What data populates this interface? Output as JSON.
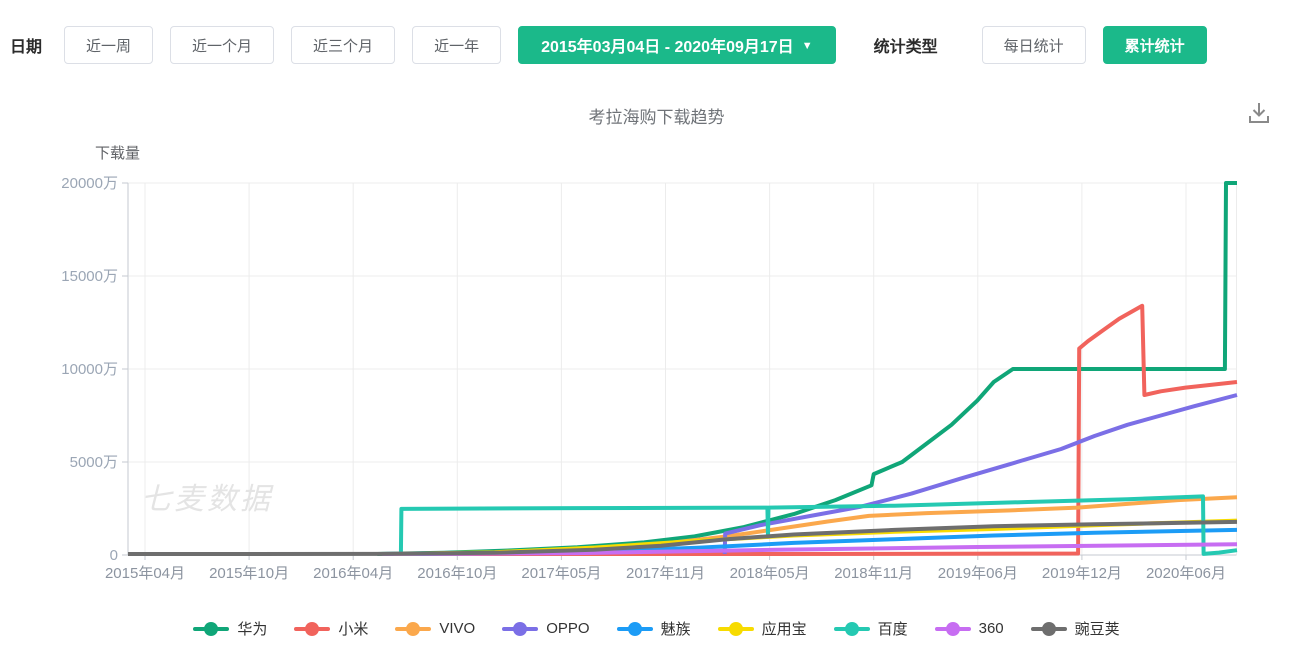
{
  "accent_color": "#1BB98A",
  "toolbar": {
    "date_label": "日期",
    "quick_ranges": [
      "近一周",
      "近一个月",
      "近三个月",
      "近一年"
    ],
    "date_range": {
      "value": "2015年03月04日 - 2020年09月17日",
      "caret": "▼"
    },
    "stat_type": {
      "label": "统计类型",
      "options": [
        {
          "label": "每日统计",
          "active": false
        },
        {
          "label": "累计统计",
          "active": true
        }
      ]
    }
  },
  "watermark": "七麦数据",
  "icons": {
    "download": "tray-with-down-arrow",
    "caret": "down-triangle"
  },
  "chart_data": {
    "type": "line",
    "title": "考拉海购下载趋势",
    "ylabel": "下载量",
    "unit": "万",
    "grid": true,
    "legend_position": "bottom",
    "x_range": [
      "2015-03-04",
      "2020-09-17"
    ],
    "y_max": 20000,
    "y_ticks": [
      {
        "v": 0,
        "label": "0"
      },
      {
        "v": 5000,
        "label": "5000万"
      },
      {
        "v": 10000,
        "label": "10000万"
      },
      {
        "v": 15000,
        "label": "15000万"
      },
      {
        "v": 20000,
        "label": "20000万"
      }
    ],
    "x_tick_labels": [
      "2015年04月",
      "2015年10月",
      "2016年04月",
      "2016年10月",
      "2017年05月",
      "2017年11月",
      "2018年05月",
      "2018年11月",
      "2019年06月",
      "2019年12月",
      "2020年06月"
    ],
    "series": [
      {
        "key": "huawei",
        "name": "华为",
        "color": "#10A678",
        "points": [
          [
            "2016-06-01",
            20
          ],
          [
            "2016-10-01",
            120
          ],
          [
            "2017-02-01",
            250
          ],
          [
            "2017-06-01",
            420
          ],
          [
            "2017-10-01",
            680
          ],
          [
            "2018-01-01",
            1000
          ],
          [
            "2018-04-01",
            1500
          ],
          [
            "2018-07-01",
            2200
          ],
          [
            "2018-09-15",
            2950
          ],
          [
            "2018-11-20",
            3750
          ],
          [
            "2018-11-24",
            4350
          ],
          [
            "2019-01-15",
            5000
          ],
          [
            "2019-03-01",
            6000
          ],
          [
            "2019-04-15",
            7000
          ],
          [
            "2019-06-01",
            8300
          ],
          [
            "2019-07-01",
            9300
          ],
          [
            "2019-08-05",
            10000
          ],
          [
            "2020-08-26",
            10000
          ],
          [
            "2020-08-28",
            20000
          ],
          [
            "2020-09-17",
            20000
          ]
        ]
      },
      {
        "key": "xiaomi",
        "name": "小米",
        "color": "#F1635C",
        "points": [
          [
            "2016-06-10",
            15
          ],
          [
            "2017-06-01",
            35
          ],
          [
            "2018-06-01",
            55
          ],
          [
            "2019-12-02",
            80
          ],
          [
            "2019-12-04",
            11100
          ],
          [
            "2019-12-20",
            11500
          ],
          [
            "2020-01-15",
            12050
          ],
          [
            "2020-02-15",
            12700
          ],
          [
            "2020-03-28",
            13400
          ],
          [
            "2020-04-01",
            8600
          ],
          [
            "2020-05-01",
            8800
          ],
          [
            "2020-06-15",
            9000
          ],
          [
            "2020-09-17",
            9300
          ]
        ]
      },
      {
        "key": "vivo",
        "name": "VIVO",
        "color": "#FBA84C",
        "points": [
          [
            "2016-07-01",
            20
          ],
          [
            "2017-01-01",
            120
          ],
          [
            "2017-06-01",
            300
          ],
          [
            "2017-11-01",
            600
          ],
          [
            "2018-03-01",
            1000
          ],
          [
            "2018-06-01",
            1400
          ],
          [
            "2018-09-01",
            1800
          ],
          [
            "2018-11-15",
            2100
          ],
          [
            "2019-03-01",
            2250
          ],
          [
            "2019-08-01",
            2400
          ],
          [
            "2019-12-01",
            2550
          ],
          [
            "2020-03-01",
            2750
          ],
          [
            "2020-06-01",
            2950
          ],
          [
            "2020-09-17",
            3100
          ]
        ]
      },
      {
        "key": "oppo",
        "name": "OPPO",
        "color": "#7B6FE6",
        "points": [
          [
            "2018-02-25",
            0
          ],
          [
            "2018-02-26",
            1150
          ],
          [
            "2018-05-01",
            1600
          ],
          [
            "2018-08-01",
            2100
          ],
          [
            "2018-11-01",
            2600
          ],
          [
            "2019-02-01",
            3300
          ],
          [
            "2019-05-01",
            4100
          ],
          [
            "2019-08-01",
            4900
          ],
          [
            "2019-11-01",
            5700
          ],
          [
            "2020-01-01",
            6400
          ],
          [
            "2020-03-01",
            7000
          ],
          [
            "2020-05-01",
            7500
          ],
          [
            "2020-07-01",
            8000
          ],
          [
            "2020-09-17",
            8600
          ]
        ]
      },
      {
        "key": "meizu",
        "name": "魅族",
        "color": "#1C9CF6",
        "points": [
          [
            "2016-06-10",
            15
          ],
          [
            "2017-01-01",
            80
          ],
          [
            "2017-07-01",
            200
          ],
          [
            "2018-01-01",
            380
          ],
          [
            "2018-07-01",
            650
          ],
          [
            "2019-01-01",
            850
          ],
          [
            "2019-07-01",
            1050
          ],
          [
            "2020-01-01",
            1200
          ],
          [
            "2020-09-17",
            1350
          ]
        ]
      },
      {
        "key": "yingyongbao",
        "name": "应用宝",
        "color": "#F7DB00",
        "points": [
          [
            "2016-07-01",
            20
          ],
          [
            "2017-01-01",
            150
          ],
          [
            "2017-07-01",
            400
          ],
          [
            "2018-01-01",
            750
          ],
          [
            "2018-07-01",
            1050
          ],
          [
            "2019-01-01",
            1250
          ],
          [
            "2019-07-01",
            1400
          ],
          [
            "2020-01-01",
            1600
          ],
          [
            "2020-09-17",
            1850
          ]
        ]
      },
      {
        "key": "baidu",
        "name": "百度",
        "color": "#25C9B2",
        "points": [
          [
            "2016-07-14",
            0
          ],
          [
            "2016-07-15",
            2480
          ],
          [
            "2017-06-01",
            2520
          ],
          [
            "2018-05-14",
            2550
          ],
          [
            "2018-05-15",
            1000
          ],
          [
            "2018-05-16",
            2550
          ],
          [
            "2019-01-01",
            2650
          ],
          [
            "2019-09-01",
            2850
          ],
          [
            "2020-03-01",
            3000
          ],
          [
            "2020-07-17",
            3150
          ],
          [
            "2020-07-18",
            60
          ],
          [
            "2020-08-15",
            130
          ],
          [
            "2020-09-17",
            260
          ]
        ]
      },
      {
        "key": "s360",
        "name": "360",
        "color": "#C76DF2",
        "points": [
          [
            "2016-06-10",
            15
          ],
          [
            "2017-06-01",
            100
          ],
          [
            "2018-06-01",
            280
          ],
          [
            "2019-06-01",
            430
          ],
          [
            "2020-09-17",
            580
          ]
        ]
      },
      {
        "key": "wandoujia",
        "name": "豌豆荚",
        "color": "#6E6E6E",
        "points": [
          [
            "2015-03-04",
            25
          ],
          [
            "2016-06-01",
            60
          ],
          [
            "2017-01-01",
            120
          ],
          [
            "2017-07-01",
            280
          ],
          [
            "2017-11-01",
            500
          ],
          [
            "2018-03-01",
            850
          ],
          [
            "2018-07-01",
            1100
          ],
          [
            "2019-01-01",
            1350
          ],
          [
            "2019-07-01",
            1550
          ],
          [
            "2020-01-01",
            1650
          ],
          [
            "2020-09-17",
            1780
          ]
        ]
      }
    ]
  }
}
